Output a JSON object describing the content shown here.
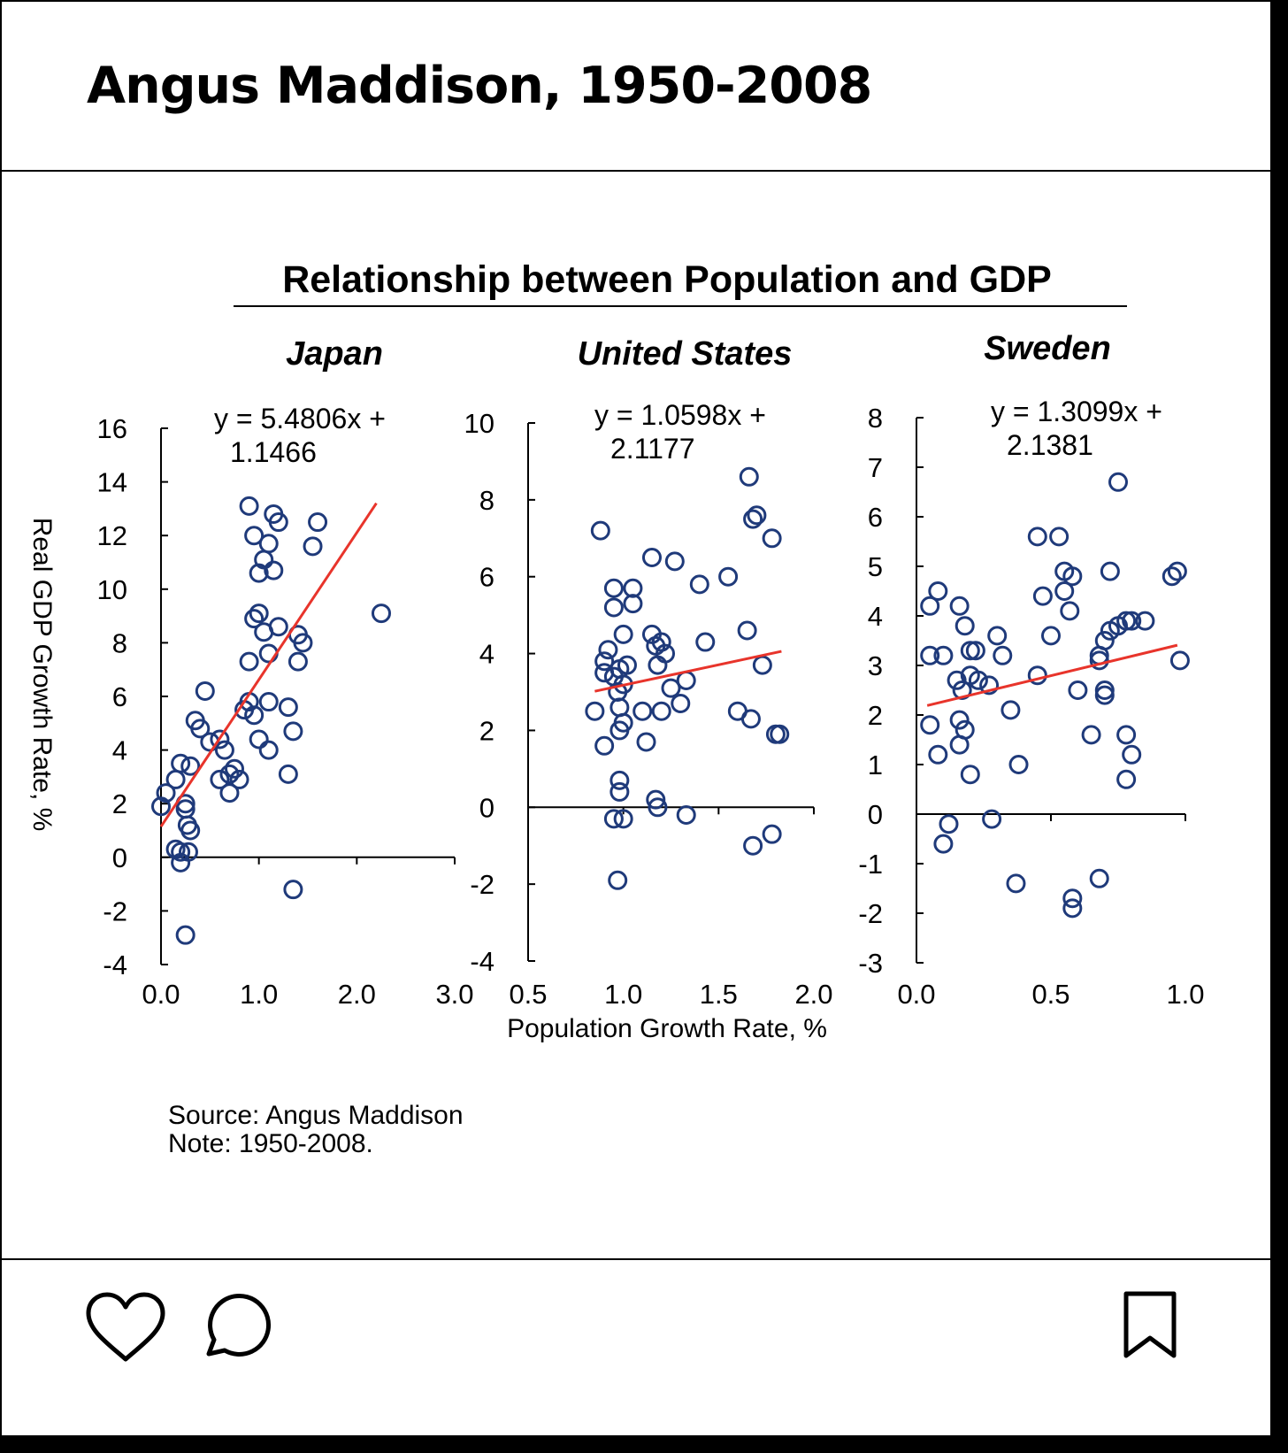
{
  "post": {
    "title": "Angus Maddison, 1950-2008"
  },
  "actions": {
    "like_icon": "heart-icon",
    "comment_icon": "comment-bubble-icon",
    "save_icon": "bookmark-icon"
  },
  "chart_data": {
    "type": "scatter",
    "title": "Relationship between Population and GDP",
    "xlabel": "Population Growth Rate, %",
    "ylabel": "Real GDP Growth Rate, %",
    "source": "Source: Angus Maddison",
    "note": "Note: 1950-2008.",
    "colors": {
      "points": "#1f3a7a",
      "trend": "#e8342b",
      "axis": "#000000"
    },
    "panels": [
      {
        "name": "Japan",
        "equation": [
          "y = 5.4806x +",
          "1.1466"
        ],
        "xlim": [
          0,
          3
        ],
        "ylim": [
          -4,
          16
        ],
        "xticks": [
          0,
          1,
          2,
          3
        ],
        "xtick_labels": [
          "0.0",
          "1.0",
          "2.0",
          "3.0"
        ],
        "yticks": [
          -4,
          -2,
          0,
          2,
          4,
          6,
          8,
          10,
          12,
          14,
          16
        ],
        "trend": {
          "slope": 5.4806,
          "intercept": 1.1466,
          "x_range": [
            0.0,
            2.2
          ]
        },
        "points": [
          [
            0.0,
            1.9
          ],
          [
            0.05,
            2.4
          ],
          [
            0.15,
            2.9
          ],
          [
            0.2,
            3.5
          ],
          [
            0.3,
            3.4
          ],
          [
            0.25,
            2.0
          ],
          [
            0.25,
            1.8
          ],
          [
            0.27,
            1.2
          ],
          [
            0.3,
            1.0
          ],
          [
            0.15,
            0.3
          ],
          [
            0.2,
            0.2
          ],
          [
            0.28,
            0.2
          ],
          [
            0.2,
            -0.2
          ],
          [
            0.25,
            -2.9
          ],
          [
            0.35,
            5.1
          ],
          [
            0.4,
            4.8
          ],
          [
            0.45,
            6.2
          ],
          [
            0.5,
            4.3
          ],
          [
            0.6,
            4.4
          ],
          [
            0.65,
            4.0
          ],
          [
            0.6,
            2.9
          ],
          [
            0.7,
            3.1
          ],
          [
            0.75,
            3.3
          ],
          [
            0.8,
            2.9
          ],
          [
            0.7,
            2.4
          ],
          [
            0.85,
            5.5
          ],
          [
            0.9,
            5.8
          ],
          [
            0.95,
            5.3
          ],
          [
            1.0,
            4.4
          ],
          [
            1.1,
            4.0
          ],
          [
            1.1,
            5.8
          ],
          [
            1.2,
            8.6
          ],
          [
            1.3,
            5.6
          ],
          [
            1.35,
            4.7
          ],
          [
            1.3,
            3.1
          ],
          [
            1.4,
            8.3
          ],
          [
            1.45,
            8.0
          ],
          [
            1.4,
            7.3
          ],
          [
            0.9,
            7.3
          ],
          [
            1.0,
            9.1
          ],
          [
            0.95,
            8.9
          ],
          [
            1.05,
            8.4
          ],
          [
            1.1,
            7.6
          ],
          [
            1.0,
            10.6
          ],
          [
            1.05,
            11.1
          ],
          [
            1.15,
            10.7
          ],
          [
            1.1,
            11.7
          ],
          [
            0.95,
            12.0
          ],
          [
            0.9,
            13.1
          ],
          [
            1.15,
            12.8
          ],
          [
            1.2,
            12.5
          ],
          [
            1.6,
            12.5
          ],
          [
            1.55,
            11.6
          ],
          [
            2.25,
            9.1
          ],
          [
            1.35,
            -1.2
          ]
        ]
      },
      {
        "name": "United States",
        "equation": [
          "y = 1.0598x +",
          "2.1177"
        ],
        "xlim": [
          0.5,
          2.0
        ],
        "ylim": [
          -4,
          10
        ],
        "xticks": [
          0.5,
          1.0,
          1.5,
          2.0
        ],
        "xtick_labels": [
          "0.5",
          "1.0",
          "1.5",
          "2.0"
        ],
        "yticks": [
          -4,
          -2,
          0,
          2,
          4,
          6,
          8,
          10
        ],
        "trend": {
          "slope": 1.0598,
          "intercept": 2.1177,
          "x_range": [
            0.85,
            1.83
          ]
        },
        "points": [
          [
            0.88,
            7.2
          ],
          [
            0.85,
            2.5
          ],
          [
            0.9,
            1.6
          ],
          [
            0.9,
            3.5
          ],
          [
            0.9,
            3.8
          ],
          [
            0.92,
            4.1
          ],
          [
            0.95,
            3.4
          ],
          [
            0.95,
            5.2
          ],
          [
            0.95,
            5.7
          ],
          [
            0.98,
            3.6
          ],
          [
            0.97,
            3.0
          ],
          [
            1.0,
            3.2
          ],
          [
            0.98,
            2.6
          ],
          [
            1.0,
            2.2
          ],
          [
            1.02,
            3.7
          ],
          [
            1.0,
            4.5
          ],
          [
            0.98,
            2.0
          ],
          [
            1.05,
            5.3
          ],
          [
            1.05,
            5.7
          ],
          [
            1.1,
            2.5
          ],
          [
            1.12,
            1.7
          ],
          [
            1.15,
            4.5
          ],
          [
            1.15,
            6.5
          ],
          [
            1.17,
            4.2
          ],
          [
            1.18,
            3.7
          ],
          [
            1.2,
            4.3
          ],
          [
            1.22,
            4.0
          ],
          [
            1.2,
            2.5
          ],
          [
            1.25,
            3.1
          ],
          [
            1.27,
            6.4
          ],
          [
            1.3,
            2.7
          ],
          [
            1.33,
            3.3
          ],
          [
            1.4,
            5.8
          ],
          [
            1.43,
            4.3
          ],
          [
            1.55,
            6.0
          ],
          [
            1.6,
            2.5
          ],
          [
            1.65,
            4.6
          ],
          [
            1.67,
            2.3
          ],
          [
            1.7,
            7.6
          ],
          [
            1.68,
            7.5
          ],
          [
            1.73,
            3.7
          ],
          [
            1.78,
            7.0
          ],
          [
            1.66,
            8.6
          ],
          [
            1.8,
            1.9
          ],
          [
            1.82,
            1.9
          ],
          [
            0.98,
            0.7
          ],
          [
            0.98,
            0.4
          ],
          [
            0.95,
            -0.3
          ],
          [
            1.0,
            -0.3
          ],
          [
            1.17,
            0.2
          ],
          [
            1.18,
            0.0
          ],
          [
            1.33,
            -0.2
          ],
          [
            0.97,
            -1.9
          ],
          [
            1.68,
            -1.0
          ],
          [
            1.78,
            -0.7
          ]
        ]
      },
      {
        "name": "Sweden",
        "equation": [
          "y = 1.3099x +",
          "2.1381"
        ],
        "xlim": [
          0,
          1.0
        ],
        "ylim": [
          -3,
          8
        ],
        "xticks": [
          0,
          0.5,
          1.0
        ],
        "xtick_labels": [
          "0.0",
          "0.5",
          "1.0"
        ],
        "yticks": [
          -3,
          -2,
          -1,
          0,
          1,
          2,
          3,
          4,
          5,
          6,
          7,
          8
        ],
        "trend": {
          "slope": 1.3099,
          "intercept": 2.1381,
          "x_range": [
            0.04,
            0.97
          ]
        },
        "points": [
          [
            0.05,
            4.2
          ],
          [
            0.08,
            4.5
          ],
          [
            0.05,
            3.2
          ],
          [
            0.1,
            3.2
          ],
          [
            0.05,
            1.8
          ],
          [
            0.08,
            1.2
          ],
          [
            0.15,
            2.7
          ],
          [
            0.17,
            2.5
          ],
          [
            0.16,
            4.2
          ],
          [
            0.18,
            3.8
          ],
          [
            0.2,
            3.3
          ],
          [
            0.22,
            3.3
          ],
          [
            0.2,
            2.8
          ],
          [
            0.23,
            2.7
          ],
          [
            0.27,
            2.6
          ],
          [
            0.3,
            3.6
          ],
          [
            0.32,
            3.2
          ],
          [
            0.35,
            2.1
          ],
          [
            0.38,
            1.0
          ],
          [
            0.16,
            1.9
          ],
          [
            0.18,
            1.7
          ],
          [
            0.16,
            1.4
          ],
          [
            0.2,
            0.8
          ],
          [
            0.45,
            2.8
          ],
          [
            0.47,
            4.4
          ],
          [
            0.5,
            3.6
          ],
          [
            0.45,
            5.6
          ],
          [
            0.53,
            5.6
          ],
          [
            0.55,
            4.9
          ],
          [
            0.58,
            4.8
          ],
          [
            0.55,
            4.5
          ],
          [
            0.57,
            4.1
          ],
          [
            0.6,
            2.5
          ],
          [
            0.65,
            1.6
          ],
          [
            0.68,
            3.2
          ],
          [
            0.7,
            3.5
          ],
          [
            0.72,
            3.7
          ],
          [
            0.7,
            2.4
          ],
          [
            0.7,
            2.5
          ],
          [
            0.68,
            3.1
          ],
          [
            0.72,
            4.9
          ],
          [
            0.75,
            3.8
          ],
          [
            0.78,
            3.9
          ],
          [
            0.8,
            3.9
          ],
          [
            0.85,
            3.9
          ],
          [
            0.75,
            6.7
          ],
          [
            0.78,
            1.6
          ],
          [
            0.8,
            1.2
          ],
          [
            0.78,
            0.7
          ],
          [
            0.95,
            4.8
          ],
          [
            0.97,
            4.9
          ],
          [
            0.98,
            3.1
          ],
          [
            0.12,
            -0.2
          ],
          [
            0.1,
            -0.6
          ],
          [
            0.28,
            -0.1
          ],
          [
            0.37,
            -1.4
          ],
          [
            0.58,
            -1.9
          ],
          [
            0.58,
            -1.7
          ],
          [
            0.68,
            -1.3
          ]
        ]
      }
    ]
  }
}
